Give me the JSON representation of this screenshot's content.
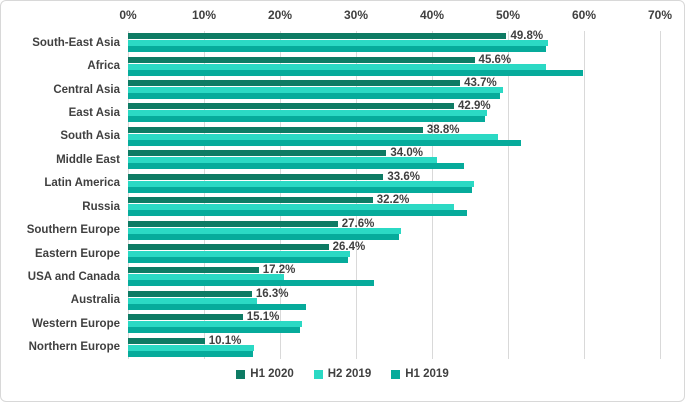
{
  "chart_data": {
    "type": "bar",
    "orientation": "horizontal",
    "title": "",
    "xlabel": "",
    "ylabel": "",
    "x_axis": {
      "position": "top",
      "min": 0,
      "max": 70,
      "tick_step": 10,
      "ticks": [
        "0%",
        "10%",
        "20%",
        "30%",
        "40%",
        "50%",
        "60%",
        "70%"
      ]
    },
    "grid": true,
    "legend_position": "bottom",
    "data_labels_series": "H1 2020",
    "categories": [
      "South-East Asia",
      "Africa",
      "Central Asia",
      "East Asia",
      "South Asia",
      "Middle East",
      "Latin America",
      "Russia",
      "Southern Europe",
      "Eastern Europe",
      "USA and Canada",
      "Australia",
      "Western Europe",
      "Northern Europe"
    ],
    "series": [
      {
        "name": "H1 2020",
        "color": "#0e7b64",
        "labels": [
          "49.8%",
          "45.6%",
          "43.7%",
          "42.9%",
          "38.8%",
          "34.0%",
          "33.6%",
          "32.2%",
          "27.6%",
          "26.4%",
          "17.2%",
          "16.3%",
          "15.1%",
          "10.1%"
        ],
        "values": [
          49.8,
          45.6,
          43.7,
          42.9,
          38.8,
          34.0,
          33.6,
          32.2,
          27.6,
          26.4,
          17.2,
          16.3,
          15.1,
          10.1
        ]
      },
      {
        "name": "H2 2019",
        "color": "#2bd9c4",
        "values": [
          55.3,
          55.0,
          49.3,
          47.2,
          48.7,
          40.6,
          45.5,
          42.9,
          35.9,
          29.2,
          20.5,
          17.0,
          22.9,
          16.6
        ]
      },
      {
        "name": "H1 2019",
        "color": "#06ab9b",
        "values": [
          55.0,
          59.9,
          49.0,
          47.0,
          51.7,
          44.2,
          45.3,
          44.6,
          35.6,
          29.0,
          32.4,
          23.4,
          22.6,
          16.4
        ]
      }
    ]
  },
  "styles": {
    "grid_color": "#d9d9d9",
    "text_color": "#404040",
    "background": "#ffffff"
  }
}
